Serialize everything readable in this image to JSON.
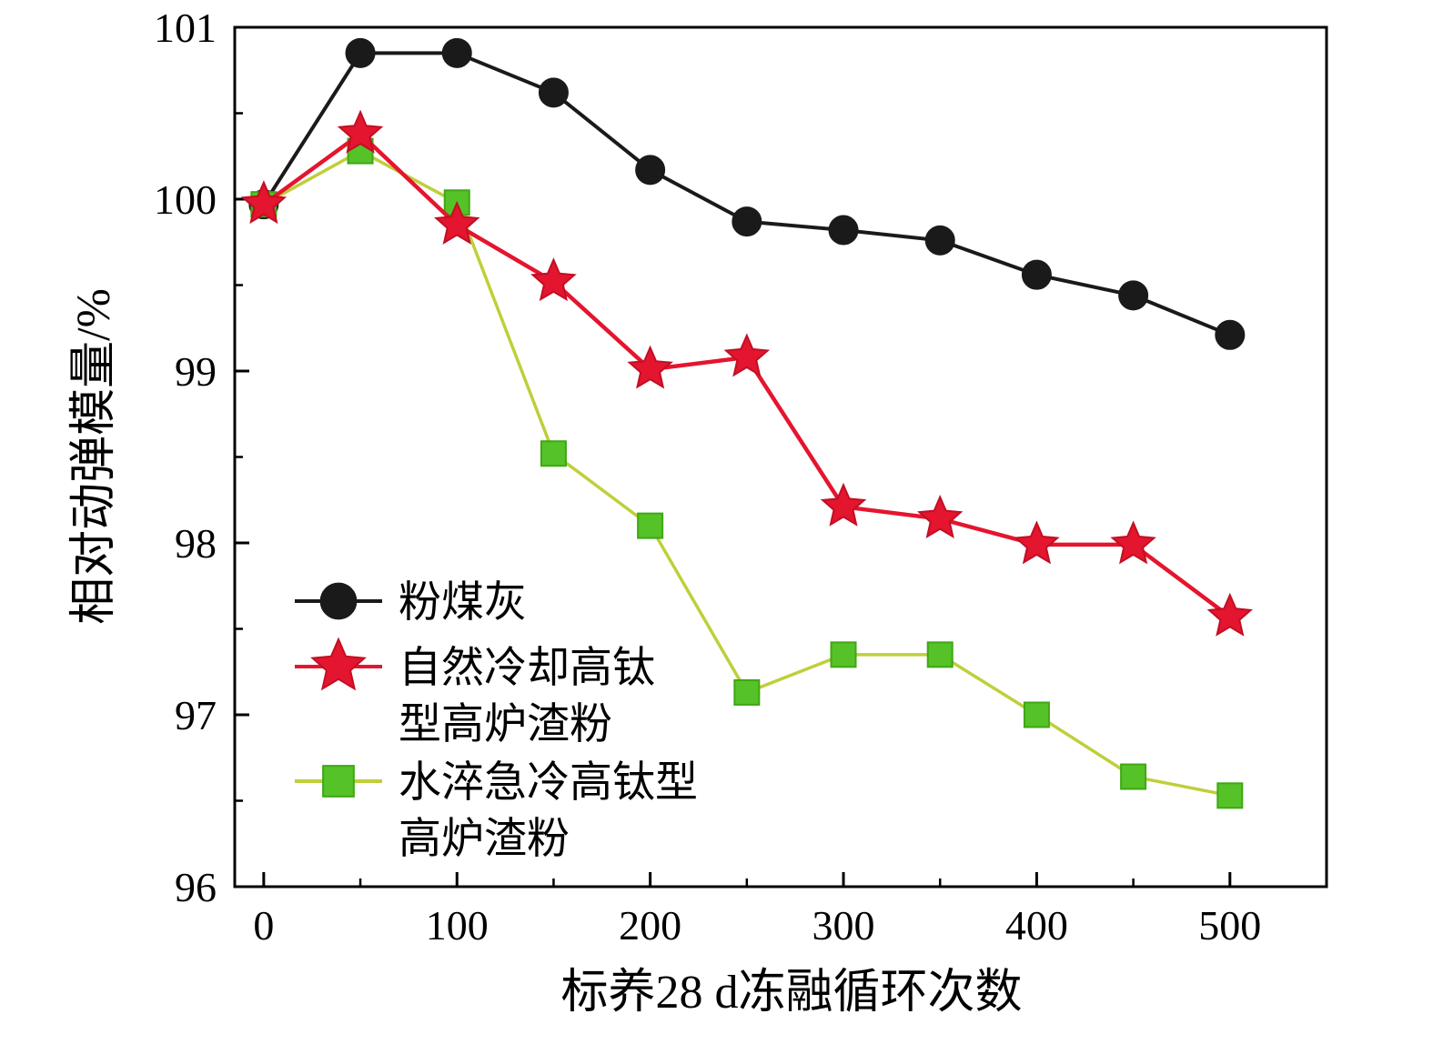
{
  "page": {
    "background": "#ffffff"
  },
  "chart_data": {
    "type": "line",
    "title": "",
    "xlabel": "标养28 d冻融循环次数",
    "ylabel": "相对动弹模量/%",
    "xlim": [
      -15,
      550
    ],
    "ylim": [
      96,
      101
    ],
    "xticks": [
      0,
      100,
      200,
      300,
      400,
      500
    ],
    "xminorticks": [
      50,
      150,
      250,
      350,
      450
    ],
    "yticks": [
      96,
      97,
      98,
      99,
      100,
      101
    ],
    "yminorticks": [
      96.5,
      97.5,
      98.5,
      99.5,
      100.5
    ],
    "grid": false,
    "axis_color": "#000000",
    "legend_position": "inside lower-left",
    "x": [
      0,
      50,
      100,
      150,
      200,
      250,
      300,
      350,
      400,
      450,
      500
    ],
    "series": [
      {
        "id": "fly-ash",
        "name": "粉煤灰",
        "marker": "circle",
        "color": "#1a1a1a",
        "edge_color": "#1a1a1a",
        "line_color": "#1a1a1a",
        "line_width": 4,
        "values": [
          99.97,
          100.85,
          100.85,
          100.62,
          100.17,
          99.87,
          99.82,
          99.76,
          99.56,
          99.44,
          99.21
        ]
      },
      {
        "id": "water-quenched-high-ti-slag",
        "name": "水淬急冷高钛型高炉渣粉",
        "marker": "square",
        "color": "#55c228",
        "edge_color": "#3fa714",
        "line_color": "#bfcf3a",
        "line_width": 3.5,
        "values": [
          99.97,
          100.28,
          99.98,
          98.52,
          98.1,
          97.13,
          97.35,
          97.35,
          97.0,
          96.64,
          96.53
        ]
      },
      {
        "id": "naturally-cooled-high-ti-slag",
        "name": "自然冷却高钛型高炉渣粉",
        "marker": "star",
        "color": "#e4152e",
        "edge_color": "#c10f24",
        "line_color": "#e4152e",
        "line_width": 4.5,
        "values": [
          99.97,
          100.38,
          99.85,
          99.52,
          99.01,
          99.08,
          98.21,
          98.14,
          97.99,
          97.99,
          97.57
        ]
      }
    ],
    "legend": [
      {
        "marker": "circle",
        "color": "#1a1a1a",
        "edge_color": "#1a1a1a",
        "line_color": "#1a1a1a",
        "lines": [
          "粉煤灰"
        ]
      },
      {
        "marker": "star",
        "color": "#e4152e",
        "edge_color": "#c10f24",
        "line_color": "#e4152e",
        "lines": [
          "自然冷却高钛",
          "型高炉渣粉"
        ]
      },
      {
        "marker": "square",
        "color": "#55c228",
        "edge_color": "#3fa714",
        "line_color": "#bfcf3a",
        "lines": [
          "水淬急冷高钛型",
          "高炉渣粉"
        ]
      }
    ]
  }
}
